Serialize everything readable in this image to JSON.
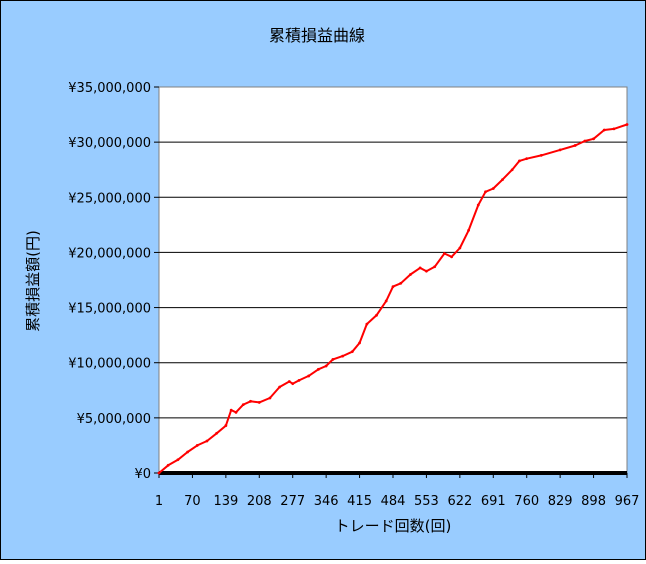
{
  "chart_data": {
    "type": "line",
    "title": "累積損益曲線",
    "xlabel": "トレード回数(回)",
    "ylabel": "累積損益額(円)",
    "x_range": [
      1,
      967
    ],
    "ylim": [
      0,
      35000000
    ],
    "x_ticks": [
      "1",
      "70",
      "139",
      "208",
      "277",
      "346",
      "415",
      "484",
      "553",
      "622",
      "691",
      "760",
      "829",
      "898",
      "967"
    ],
    "y_ticks": [
      "¥0",
      "¥5,000,000",
      "¥10,000,000",
      "¥15,000,000",
      "¥20,000,000",
      "¥25,000,000",
      "¥30,000,000",
      "¥35,000,000"
    ],
    "grid": "horizontal",
    "legend": "none",
    "colors": {
      "line": "#ff0000",
      "outer_background": "#99ccff",
      "plot_background": "#ffffff",
      "baseline": "#000000"
    },
    "series": [
      {
        "x": [
          1,
          20,
          40,
          60,
          80,
          100,
          120,
          139,
          150,
          160,
          175,
          190,
          208,
          230,
          250,
          270,
          277,
          290,
          310,
          330,
          346,
          360,
          380,
          400,
          415,
          430,
          450,
          470,
          484,
          500,
          520,
          540,
          553,
          570,
          590,
          605,
          622,
          640,
          660,
          675,
          691,
          710,
          730,
          745,
          760,
          790,
          829,
          860,
          880,
          898,
          920,
          940,
          967
        ],
        "y": [
          0,
          700000,
          1200000,
          1900000,
          2500000,
          2900000,
          3600000,
          4300000,
          5700000,
          5500000,
          6200000,
          6500000,
          6400000,
          6800000,
          7800000,
          8300000,
          8100000,
          8400000,
          8800000,
          9400000,
          9700000,
          10300000,
          10600000,
          11000000,
          11800000,
          13500000,
          14300000,
          15600000,
          16900000,
          17200000,
          18000000,
          18600000,
          18300000,
          18700000,
          19900000,
          19600000,
          20400000,
          22000000,
          24300000,
          25500000,
          25800000,
          26600000,
          27500000,
          28300000,
          28500000,
          28800000,
          29300000,
          29700000,
          30100000,
          30300000,
          31100000,
          31200000,
          31600000
        ]
      }
    ]
  }
}
